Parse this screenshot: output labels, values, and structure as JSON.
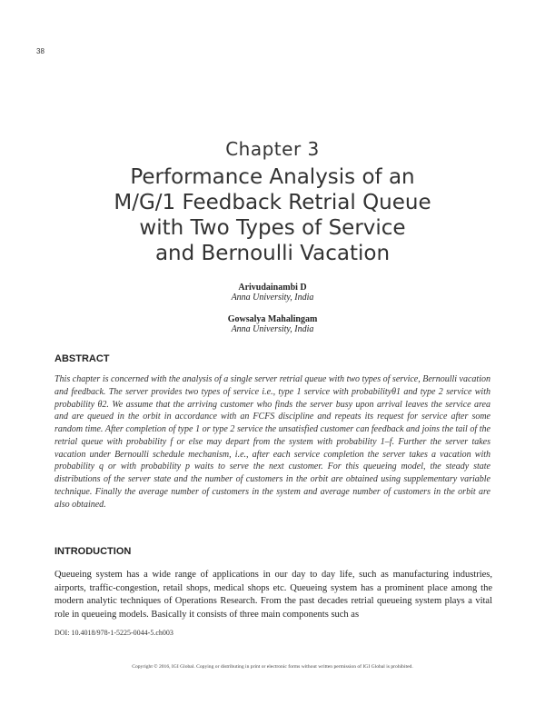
{
  "page_number": "38",
  "chapter_label": "Chapter 3",
  "title_lines": [
    "Performance Analysis of an",
    "M/G/1 Feedback Retrial Queue",
    "with Two Types of Service",
    "and Bernoulli Vacation"
  ],
  "authors": [
    {
      "name": "Arivudainambi D",
      "affiliation": "Anna University, India"
    },
    {
      "name": "Gowsalya Mahalingam",
      "affiliation": "Anna University, India"
    }
  ],
  "abstract": {
    "heading": "ABSTRACT",
    "text": "This chapter is concerned with the analysis of a single server retrial queue with two types of service, Bernoulli vacation and feedback. The server provides two types of service i.e., type 1 service with probabilityθ1 and type 2 service with probability θ2. We assume that the arriving customer who finds the server busy upon arrival leaves the service area and are queued in the orbit in accordance with an FCFS discipline and repeats its request for service after some random time. After completion of type 1 or type 2 service the unsatisfied customer can feedback and joins the tail of the retrial queue with probability f or else may depart from the system with probability 1–f. Further the server takes vacation under Bernoulli schedule mechanism, i.e., after each service completion the server takes a vacation with probability q or with probability p waits to serve the next customer. For this queueing model, the steady state distributions of the server state and the number of customers in the orbit are obtained using supplementary variable technique. Finally the average number of customers in the system and average number of customers in the orbit are also obtained."
  },
  "introduction": {
    "heading": "INTRODUCTION",
    "text": "Queueing system has a wide range of applications in our day to day life, such as manufacturing industries, airports, traffic-congestion, retail shops, medical shops etc. Queueing system has a prominent place among the modern analytic techniques of Operations Research. From the past decades retrial queueing system plays a vital role in queueing models. Basically it consists of three main components such as"
  },
  "doi": "DOI: 10.4018/978-1-5225-0044-5.ch003",
  "copyright": "Copyright © 2016, IGI Global. Copying or distributing in print or electronic forms without written permission of IGI Global is prohibited."
}
